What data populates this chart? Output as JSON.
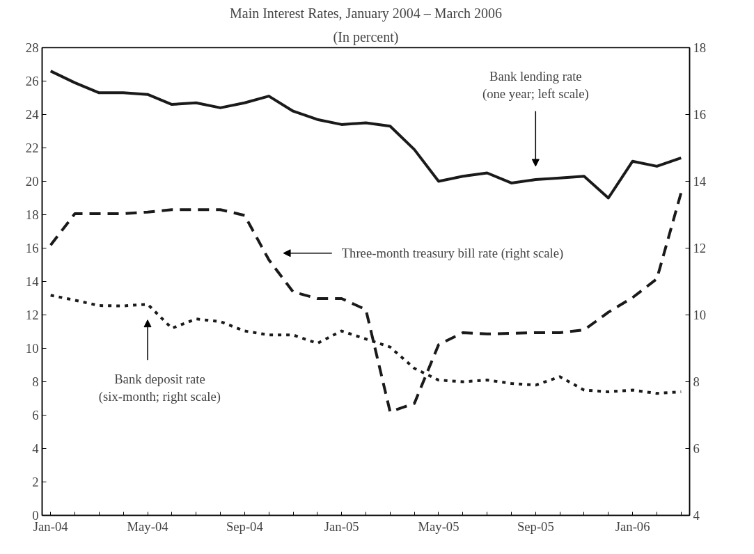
{
  "chart_data": {
    "type": "line",
    "title": "Main Interest Rates, January 2004 – March 2006",
    "subtitle": "(In percent)",
    "categories": [
      "Jan-04",
      null,
      null,
      null,
      "May-04",
      null,
      null,
      null,
      "Sep-04",
      null,
      null,
      null,
      "Jan-05",
      null,
      null,
      null,
      "May-05",
      null,
      null,
      null,
      "Sep-05",
      null,
      null,
      null,
      "Jan-06",
      null,
      null
    ],
    "series": [
      {
        "color": "#1a1a1a",
        "line_style": "solid",
        "values": [
          26.6,
          25.9,
          25.3,
          25.3,
          25.2,
          24.6,
          24.7,
          24.4,
          24.7,
          25.1,
          24.2,
          23.7,
          23.4,
          23.5,
          23.3,
          21.9,
          20.0,
          20.3,
          20.5,
          19.9,
          20.1,
          20.2,
          20.3,
          19.0,
          21.2,
          20.9,
          21.4
        ]
      },
      {
        "color": "#1a1a1a",
        "line_style": "dashed",
        "axis": "y2",
        "values": [
          12.09,
          13.03,
          13.03,
          13.03,
          13.08,
          13.15,
          13.15,
          13.15,
          12.98,
          11.65,
          10.69,
          10.49,
          10.49,
          10.16,
          7.1,
          7.35,
          9.11,
          9.47,
          9.43,
          9.45,
          9.47,
          9.47,
          9.55,
          10.08,
          10.52,
          11.08,
          13.66
        ]
      },
      {
        "color": "#1a1a1a",
        "line_style": "dotted",
        "axis": "y2",
        "values": [
          10.59,
          10.44,
          10.28,
          10.27,
          10.32,
          9.6,
          9.88,
          9.8,
          9.52,
          9.4,
          9.4,
          9.15,
          9.52,
          9.28,
          9.04,
          8.4,
          8.05,
          8.0,
          8.05,
          7.95,
          7.9,
          8.15,
          7.75,
          7.7,
          7.75,
          7.65,
          7.7
        ]
      }
    ],
    "ylim": [
      0,
      28
    ],
    "yticks": [
      0,
      2,
      4,
      6,
      8,
      10,
      12,
      14,
      16,
      18,
      20,
      22,
      24,
      26,
      28
    ],
    "y2lim": [
      4,
      18
    ],
    "y2ticks": [
      4,
      6,
      8,
      10,
      12,
      14,
      16,
      18
    ],
    "grid": false,
    "annotations": [
      "Bank lending rate\n(one year; left scale)",
      "Three-month treasury bill  rate (right scale)",
      "Bank deposit rate\n(six-month; right scale)"
    ]
  }
}
